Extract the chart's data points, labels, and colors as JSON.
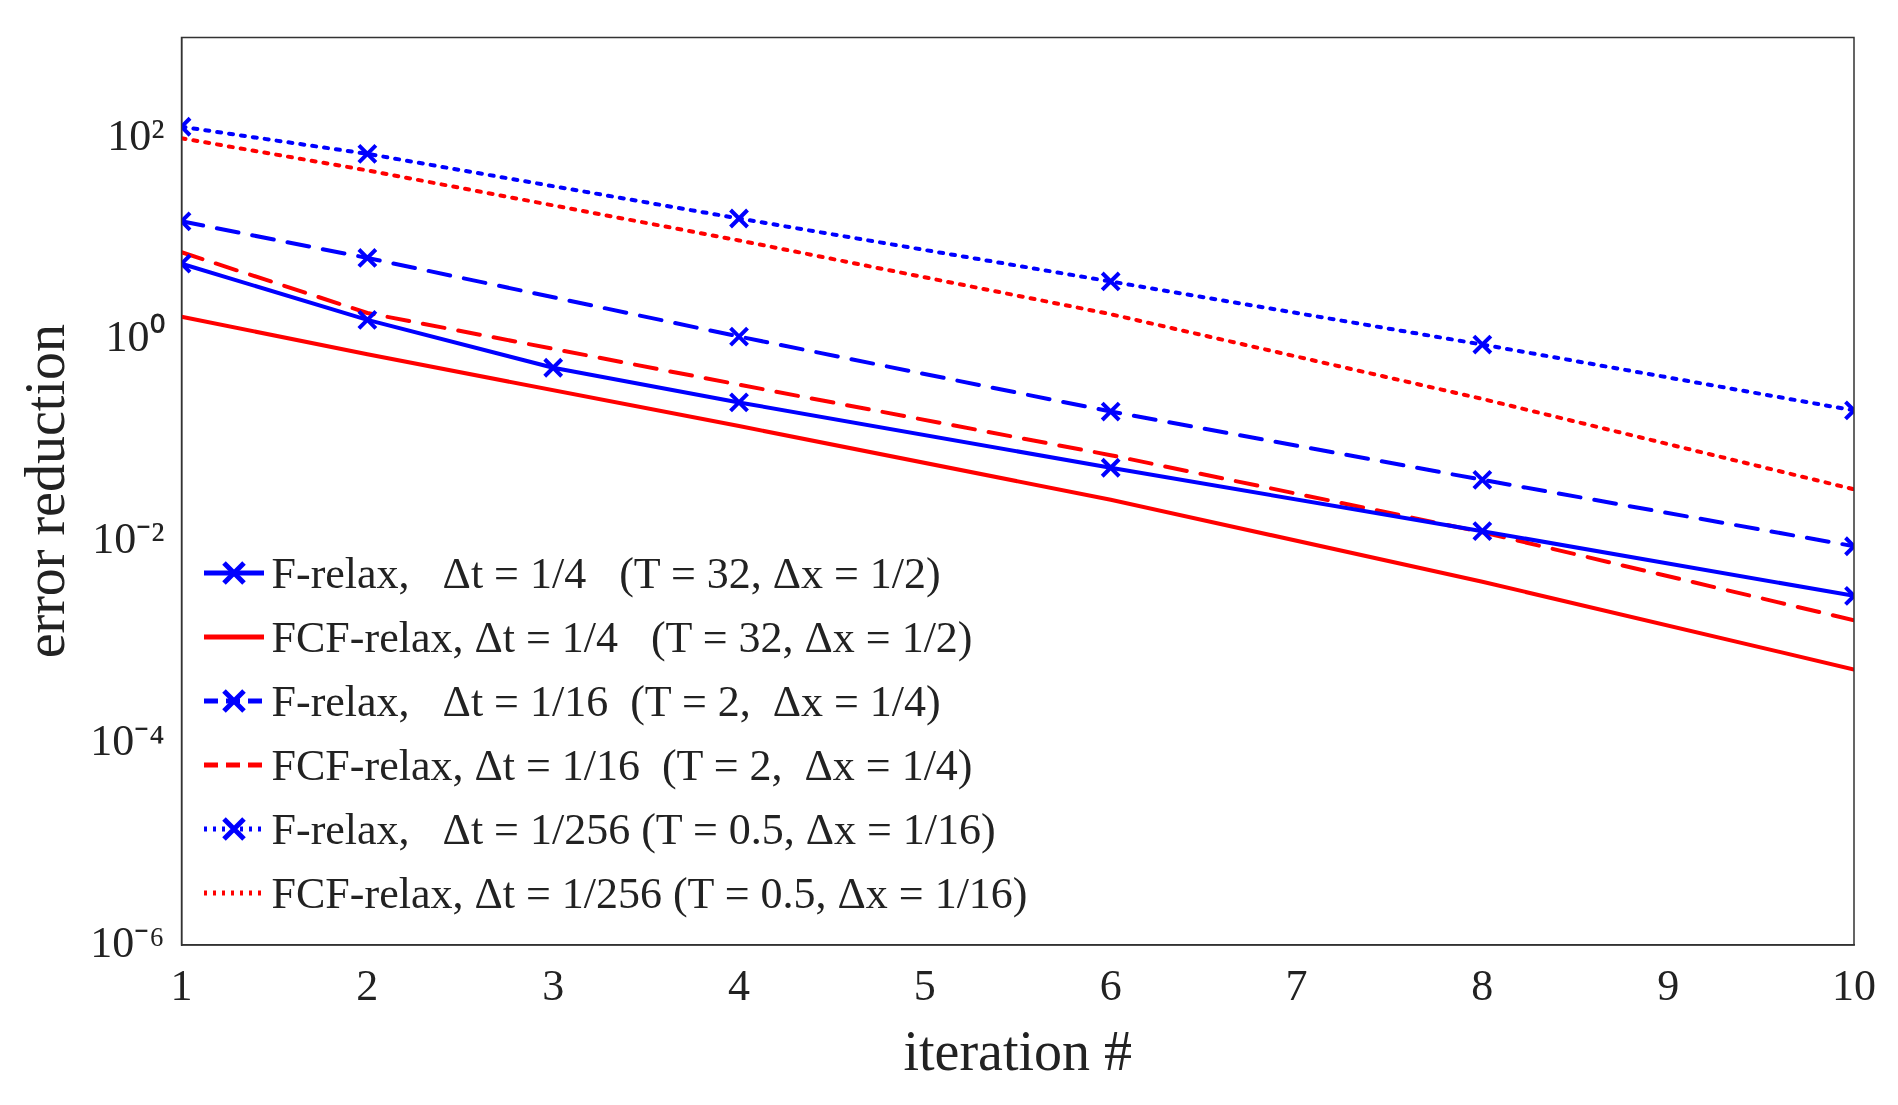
{
  "chart_data": {
    "type": "line",
    "xlabel": "iteration #",
    "ylabel": "error reduction",
    "log": "y",
    "grid": false,
    "legend": "bottom left",
    "xlim": [
      1,
      10
    ],
    "xticks": [
      1,
      2,
      3,
      4,
      5,
      6,
      7,
      8,
      9,
      10
    ],
    "ylim": [
      1e-06,
      1000
    ],
    "yticks": [
      {
        "value": 1e-06,
        "label": "10⁻⁶"
      },
      {
        "value": 0.0001,
        "label": "10⁻⁴"
      },
      {
        "value": 0.01,
        "label": "10⁻²"
      },
      {
        "value": 1,
        "label": "10⁰"
      },
      {
        "value": 100,
        "label": "10²"
      }
    ],
    "series": [
      {
        "name": "F-relax,   Δt = 1/4   (T = 32, Δx = 1/2)",
        "color": "#0000ff",
        "line_style": "solid",
        "marker": "cross",
        "x": [
          1,
          2,
          3,
          4,
          6,
          8,
          10
        ],
        "values": [
          5.7,
          1.58,
          0.53,
          0.24,
          0.054,
          0.0127,
          0.0029
        ]
      },
      {
        "name": "FCF-relax, Δt = 1/4   (T = 32, Δx = 1/2)",
        "color": "#ff0000",
        "line_style": "solid",
        "marker": "none",
        "x": [
          1,
          2,
          4,
          6,
          8,
          10
        ],
        "values": [
          1.7,
          0.72,
          0.14,
          0.026,
          0.004,
          0.00054
        ]
      },
      {
        "name": "F-relax,   Δt = 1/16  (T = 2,  Δx = 1/4)",
        "color": "#0000ff",
        "line_style": "dashed",
        "marker": "cross",
        "x": [
          1,
          2,
          4,
          6,
          8,
          10
        ],
        "values": [
          15,
          6.5,
          1.08,
          0.195,
          0.041,
          0.009
        ]
      },
      {
        "name": "FCF-relax, Δt = 1/16  (T = 2,  Δx = 1/4)",
        "color": "#ff0000",
        "line_style": "dashed",
        "marker": "none",
        "x": [
          1,
          2,
          4,
          6,
          8,
          10
        ],
        "values": [
          7.4,
          1.85,
          0.36,
          0.072,
          0.0124,
          0.00166
        ]
      },
      {
        "name": "F-relax,   Δt = 1/256 (T = 0.5, Δx = 1/16)",
        "color": "#0000ff",
        "line_style": "dotted",
        "marker": "cross",
        "x": [
          1,
          2,
          4,
          6,
          8,
          10
        ],
        "values": [
          130,
          70,
          16,
          3.8,
          0.9,
          0.2
        ]
      },
      {
        "name": "FCF-relax, Δt = 1/256 (T = 0.5, Δx = 1/16)",
        "color": "#ff0000",
        "line_style": "dotted",
        "marker": "none",
        "x": [
          1,
          2,
          4,
          6,
          8,
          10
        ],
        "values": [
          100,
          48,
          9.7,
          1.8,
          0.26,
          0.033
        ]
      }
    ]
  }
}
